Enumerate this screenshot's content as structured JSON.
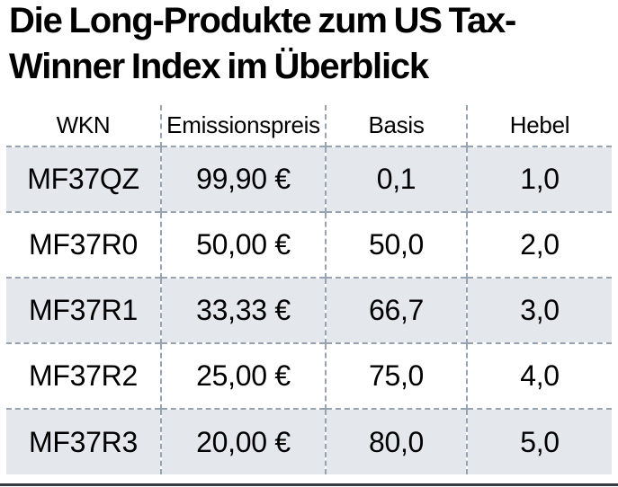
{
  "title": {
    "line1": "Die Long-Produkte zum US Tax-",
    "line2": "Winner Index im Überblick"
  },
  "chart_data": {
    "type": "table",
    "title": "Die Long-Produkte zum US Tax-Winner Index im Überblick",
    "columns": [
      "WKN",
      "Emissionspreis",
      "Basis",
      "Hebel"
    ],
    "rows": [
      [
        "MF37QZ",
        "99,90 €",
        "0,1",
        "1,0"
      ],
      [
        "MF37R0",
        "50,00 €",
        "50,0",
        "2,0"
      ],
      [
        "MF37R1",
        "33,33 €",
        "66,7",
        "3,0"
      ],
      [
        "MF37R2",
        "25,00 €",
        "75,0",
        "4,0"
      ],
      [
        "MF37R3",
        "20,00 €",
        "80,0",
        "5,0"
      ]
    ],
    "layout": {
      "striped_row_indices": [
        0,
        2,
        4
      ],
      "separator_style": "dashed",
      "header_background": "white"
    }
  },
  "colors": {
    "stripe": "#e4e8ed",
    "dash": "#97a3b0",
    "bottom_rule": "#343b44",
    "text": "#000000"
  }
}
